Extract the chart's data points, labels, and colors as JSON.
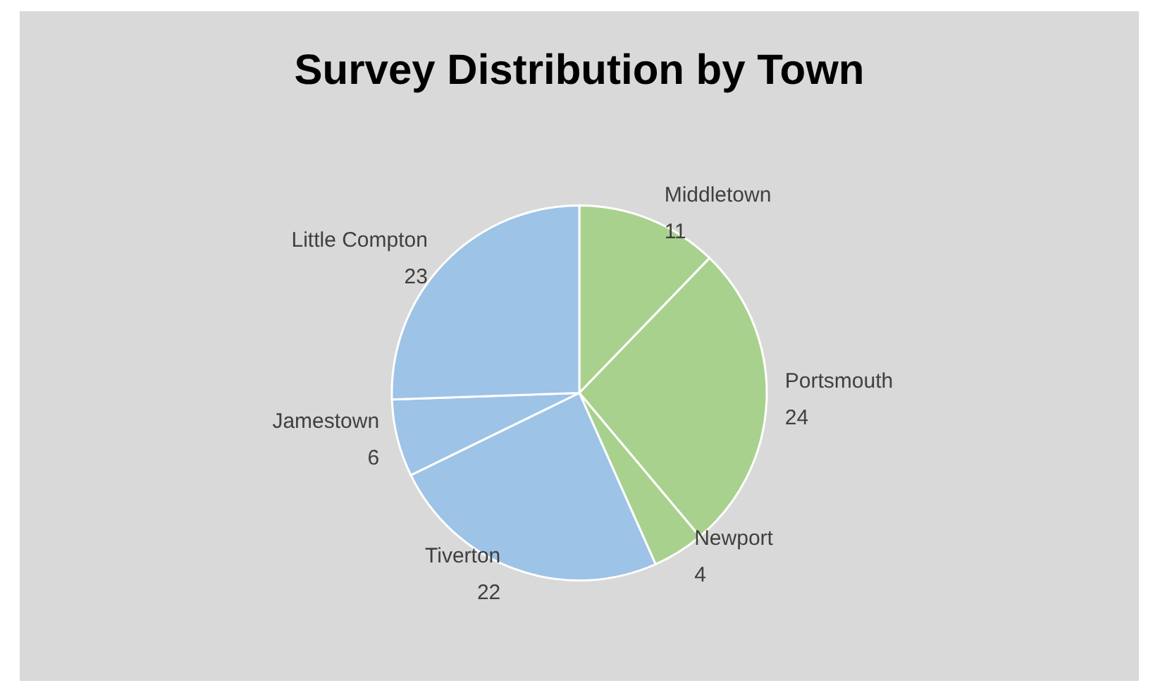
{
  "chart_data": {
    "type": "pie",
    "title": "Survey Distribution by Town",
    "categories": [
      "Middletown",
      "Portsmouth",
      "Newport",
      "Tiverton",
      "Jamestown",
      "Little Compton"
    ],
    "values": [
      11,
      24,
      4,
      22,
      6,
      23
    ],
    "colors": [
      "#a9d18e",
      "#a9d18e",
      "#a9d18e",
      "#9dc3e6",
      "#9dc3e6",
      "#9dc3e6"
    ],
    "data_labels": true,
    "legend": false
  }
}
